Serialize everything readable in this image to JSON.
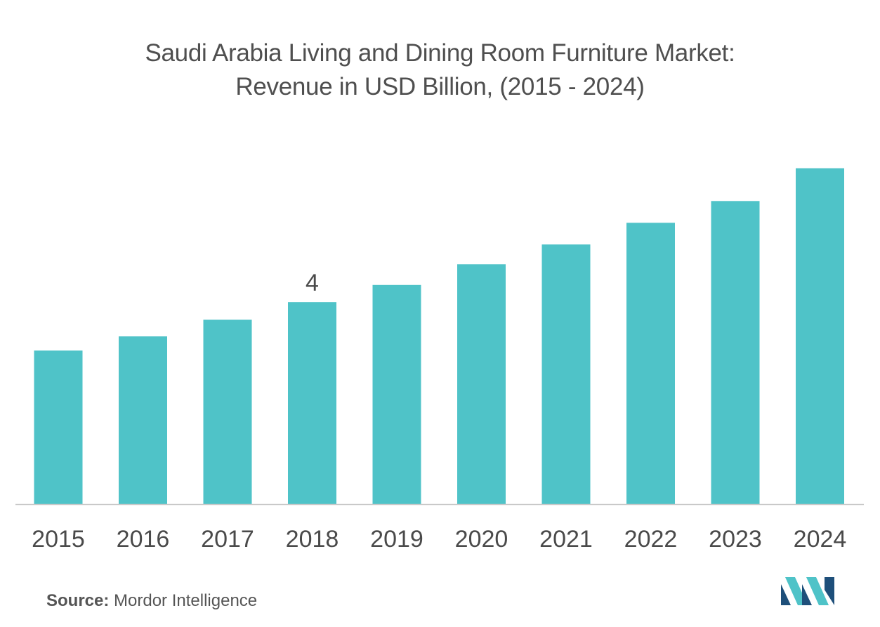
{
  "chart_data": {
    "type": "bar",
    "title_line1": "Saudi Arabia Living and Dining Room Furniture Market:",
    "title_line2": "Revenue in USD Billion, (2015 - 2024)",
    "categories": [
      "2015",
      "2016",
      "2017",
      "2018",
      "2019",
      "2020",
      "2021",
      "2022",
      "2023",
      "2024"
    ],
    "values": [
      3.04,
      3.32,
      3.65,
      4.0,
      4.34,
      4.75,
      5.14,
      5.57,
      6.0,
      6.65
    ],
    "data_labels": [
      {
        "category": "2018",
        "text": "4"
      }
    ],
    "xlabel": "",
    "ylabel": "",
    "ylim": [
      0,
      7.2
    ],
    "grid": false,
    "legend": "none",
    "bar_color": "#4fc3c8",
    "axis_color": "#c8c8c8"
  },
  "source": {
    "label": "Source:",
    "text": "Mordor Intelligence"
  },
  "logo": {
    "icon": "mordor-intelligence-logo-icon",
    "colors": [
      "#1e4f7a",
      "#4fc3c8"
    ]
  }
}
